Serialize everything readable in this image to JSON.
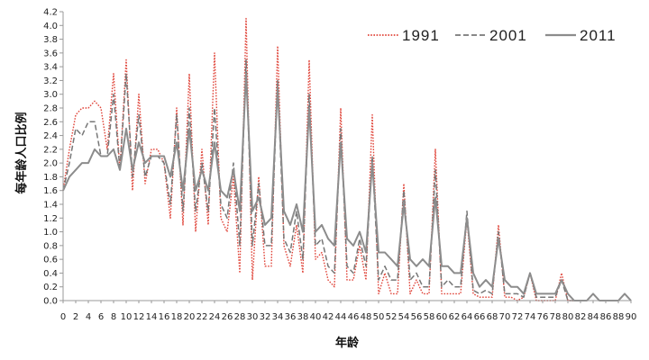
{
  "chart_data": {
    "type": "line",
    "title": "",
    "xlabel": "年龄",
    "ylabel": "每年龄人口比例",
    "xlim": [
      0,
      90
    ],
    "ylim": [
      0,
      4.2
    ],
    "x_ticks": [
      0,
      2,
      4,
      6,
      8,
      10,
      12,
      14,
      16,
      18,
      20,
      22,
      24,
      26,
      28,
      30,
      32,
      34,
      36,
      38,
      40,
      42,
      44,
      46,
      48,
      50,
      52,
      54,
      56,
      58,
      60,
      62,
      64,
      66,
      68,
      70,
      72,
      74,
      76,
      78,
      80,
      82,
      84,
      86,
      88,
      90
    ],
    "x_tick_labels": [
      "0",
      "2",
      "4",
      "6",
      "8",
      "10",
      "12",
      "14",
      "16",
      "18",
      "20",
      "22",
      "24",
      "26",
      "28",
      "30",
      "32",
      "34",
      "36",
      "38",
      "40",
      "42",
      "44",
      "46",
      "48",
      "50",
      "52",
      "54",
      "56",
      "58",
      "60",
      "62",
      "64",
      "66",
      "68",
      "70",
      "72",
      "74",
      "76",
      "78",
      "80",
      "82",
      "84",
      "86",
      "88",
      "90"
    ],
    "y_ticks": [
      0,
      0.2,
      0.4,
      0.6,
      0.8,
      1.0,
      1.2,
      1.4,
      1.6,
      1.8,
      2.0,
      2.2,
      2.4,
      2.6,
      2.8,
      3.0,
      3.2,
      3.4,
      3.6,
      3.8,
      4.0,
      4.2
    ],
    "y_tick_labels": [
      "0.0",
      "0.2",
      "0.4",
      "0.6",
      "0.8",
      "1.0",
      "1.2",
      "1.4",
      "1.6",
      "1.8",
      "2.0",
      "2.2",
      "2.4",
      "2.6",
      "2.8",
      "3.0",
      "3.2",
      "3.4",
      "3.6",
      "3.8",
      "4.0",
      "4.2"
    ],
    "grid": false,
    "legend_position": "top-right",
    "series": [
      {
        "name": "1991",
        "color": "#e0453a",
        "style": "dotted",
        "x": [
          0,
          1,
          2,
          3,
          4,
          5,
          6,
          7,
          8,
          9,
          10,
          11,
          12,
          13,
          14,
          15,
          16,
          17,
          18,
          19,
          20,
          21,
          22,
          23,
          24,
          25,
          26,
          27,
          28,
          29,
          30,
          31,
          32,
          33,
          34,
          35,
          36,
          37,
          38,
          39,
          40,
          41,
          42,
          43,
          44,
          45,
          46,
          47,
          48,
          49,
          50,
          51,
          52,
          53,
          54,
          55,
          56,
          57,
          58,
          59,
          60,
          61,
          62,
          63,
          64,
          65,
          66,
          67,
          68,
          69,
          70,
          71,
          72,
          73,
          74,
          75,
          76,
          77,
          78,
          79,
          80,
          81,
          82,
          83,
          84,
          85,
          86,
          87,
          88,
          89,
          90
        ],
        "y": [
          1.6,
          2.2,
          2.7,
          2.8,
          2.8,
          2.9,
          2.8,
          2.2,
          3.3,
          1.9,
          3.5,
          1.6,
          3.0,
          1.7,
          2.2,
          2.2,
          2.0,
          1.2,
          2.8,
          1.1,
          3.3,
          1.0,
          2.2,
          1.1,
          3.6,
          1.2,
          1.0,
          1.8,
          0.4,
          4.1,
          0.3,
          1.8,
          0.5,
          0.5,
          3.7,
          0.8,
          0.5,
          1.1,
          0.4,
          3.5,
          0.6,
          0.7,
          0.3,
          0.2,
          2.8,
          0.3,
          0.3,
          0.8,
          0.3,
          2.7,
          0.1,
          0.4,
          0.1,
          0.1,
          1.7,
          0.1,
          0.3,
          0.1,
          0.1,
          2.2,
          0.1,
          0.1,
          0.1,
          0.1,
          1.2,
          0.1,
          0.05,
          0.05,
          0.05,
          1.1,
          0.05,
          0.05,
          0.0,
          0.05,
          0.4,
          0.0,
          0.0,
          0.0,
          0.0,
          0.4,
          0.0,
          0.0,
          0.0,
          0.0,
          0.1,
          0.0,
          0.0,
          0.0,
          0.0,
          0.1,
          0.0
        ]
      },
      {
        "name": "2001",
        "color": "#777777",
        "style": "dashed",
        "x": [
          0,
          1,
          2,
          3,
          4,
          5,
          6,
          7,
          8,
          9,
          10,
          11,
          12,
          13,
          14,
          15,
          16,
          17,
          18,
          19,
          20,
          21,
          22,
          23,
          24,
          25,
          26,
          27,
          28,
          29,
          30,
          31,
          32,
          33,
          34,
          35,
          36,
          37,
          38,
          39,
          40,
          41,
          42,
          43,
          44,
          45,
          46,
          47,
          48,
          49,
          50,
          51,
          52,
          53,
          54,
          55,
          56,
          57,
          58,
          59,
          60,
          61,
          62,
          63,
          64,
          65,
          66,
          67,
          68,
          69,
          70,
          71,
          72,
          73,
          74,
          75,
          76,
          77,
          78,
          79,
          80,
          81,
          82,
          83,
          84,
          85,
          86,
          87,
          88,
          89,
          90
        ],
        "y": [
          1.6,
          2.0,
          2.5,
          2.4,
          2.6,
          2.6,
          2.1,
          2.1,
          3.0,
          1.9,
          3.3,
          1.8,
          2.7,
          1.8,
          2.1,
          2.1,
          2.0,
          1.4,
          2.7,
          1.3,
          2.8,
          1.3,
          2.0,
          1.3,
          2.8,
          1.4,
          1.2,
          2.0,
          0.8,
          3.5,
          0.8,
          1.7,
          0.8,
          0.8,
          3.2,
          0.9,
          0.7,
          1.3,
          0.6,
          3.0,
          0.8,
          0.9,
          0.5,
          0.4,
          2.5,
          0.5,
          0.4,
          0.9,
          0.5,
          2.1,
          0.3,
          0.5,
          0.3,
          0.3,
          1.6,
          0.3,
          0.4,
          0.2,
          0.2,
          1.9,
          0.2,
          0.3,
          0.2,
          0.2,
          1.3,
          0.15,
          0.1,
          0.15,
          0.1,
          1.0,
          0.1,
          0.1,
          0.1,
          0.05,
          0.4,
          0.05,
          0.05,
          0.05,
          0.05,
          0.3,
          0.0,
          0.0,
          0.0,
          0.0,
          0.1,
          0.0,
          0.0,
          0.0,
          0.0,
          0.1,
          0.0
        ]
      },
      {
        "name": "2011",
        "color": "#8c8c8c",
        "style": "solid",
        "x": [
          0,
          1,
          2,
          3,
          4,
          5,
          6,
          7,
          8,
          9,
          10,
          11,
          12,
          13,
          14,
          15,
          16,
          17,
          18,
          19,
          20,
          21,
          22,
          23,
          24,
          25,
          26,
          27,
          28,
          29,
          30,
          31,
          32,
          33,
          34,
          35,
          36,
          37,
          38,
          39,
          40,
          41,
          42,
          43,
          44,
          45,
          46,
          47,
          48,
          49,
          50,
          51,
          52,
          53,
          54,
          55,
          56,
          57,
          58,
          59,
          60,
          61,
          62,
          63,
          64,
          65,
          66,
          67,
          68,
          69,
          70,
          71,
          72,
          73,
          74,
          75,
          76,
          77,
          78,
          79,
          80,
          81,
          82,
          83,
          84,
          85,
          86,
          87,
          88,
          89,
          90
        ],
        "y": [
          1.6,
          1.8,
          1.9,
          2.0,
          2.0,
          2.2,
          2.1,
          2.1,
          2.2,
          1.9,
          2.5,
          1.9,
          2.3,
          2.0,
          2.1,
          2.1,
          2.1,
          1.8,
          2.3,
          1.6,
          2.5,
          1.6,
          1.9,
          1.6,
          2.3,
          1.6,
          1.5,
          1.9,
          1.3,
          3.3,
          1.3,
          1.5,
          1.1,
          1.2,
          3.1,
          1.3,
          1.1,
          1.4,
          1.0,
          2.8,
          1.0,
          1.1,
          0.9,
          0.8,
          2.3,
          0.9,
          0.8,
          1.0,
          0.7,
          2.0,
          0.7,
          0.7,
          0.6,
          0.5,
          1.4,
          0.6,
          0.5,
          0.6,
          0.5,
          1.5,
          0.5,
          0.5,
          0.4,
          0.4,
          1.2,
          0.4,
          0.2,
          0.3,
          0.2,
          0.9,
          0.3,
          0.2,
          0.2,
          0.1,
          0.4,
          0.1,
          0.1,
          0.1,
          0.1,
          0.3,
          0.1,
          0.0,
          0.0,
          0.0,
          0.1,
          0.0,
          0.0,
          0.0,
          0.0,
          0.1,
          0.0
        ]
      }
    ]
  }
}
